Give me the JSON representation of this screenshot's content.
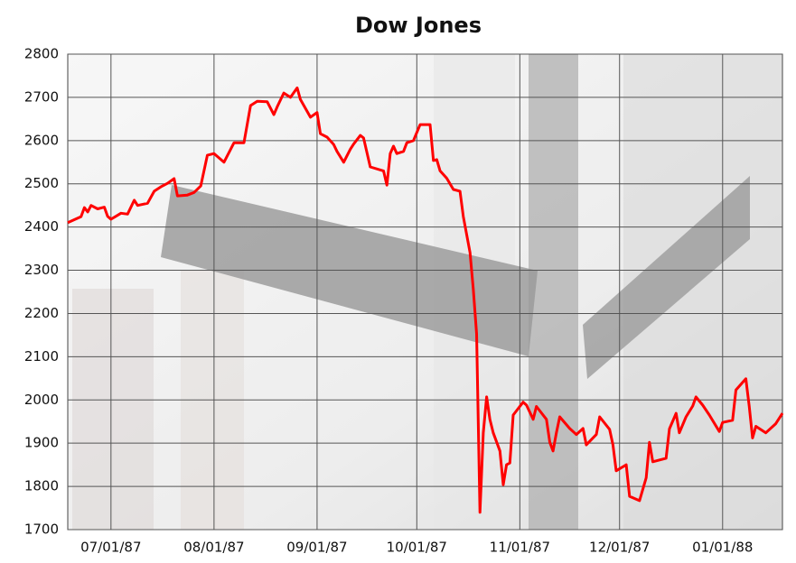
{
  "chart_data": {
    "type": "line",
    "title": "Dow Jones",
    "xlim": [
      "1987-06-18",
      "1988-01-19"
    ],
    "xticks": [
      {
        "value": "1987-07-01",
        "label": "07/01/87"
      },
      {
        "value": "1987-08-01",
        "label": "08/01/87"
      },
      {
        "value": "1987-09-01",
        "label": "09/01/87"
      },
      {
        "value": "1987-10-01",
        "label": "10/01/87"
      },
      {
        "value": "1987-11-01",
        "label": "11/01/87"
      },
      {
        "value": "1987-12-01",
        "label": "12/01/87"
      },
      {
        "value": "1988-01-01",
        "label": "01/01/88"
      }
    ],
    "ylim": [
      1700,
      2800
    ],
    "yticks": [
      1700,
      1800,
      1900,
      2000,
      2100,
      2200,
      2300,
      2400,
      2500,
      2600,
      2700,
      2800
    ],
    "grid": true,
    "x": [
      "1987-06-18",
      "1987-06-22",
      "1987-06-23",
      "1987-06-24",
      "1987-06-25",
      "1987-06-27",
      "1987-06-29",
      "1987-06-30",
      "1987-07-01",
      "1987-07-04",
      "1987-07-06",
      "1987-07-08",
      "1987-07-09",
      "1987-07-12",
      "1987-07-14",
      "1987-07-16",
      "1987-07-18",
      "1987-07-20",
      "1987-07-21",
      "1987-07-24",
      "1987-07-26",
      "1987-07-28",
      "1987-07-30",
      "1987-08-01",
      "1987-08-04",
      "1987-08-07",
      "1987-08-10",
      "1987-08-12",
      "1987-08-14",
      "1987-08-17",
      "1987-08-19",
      "1987-08-20",
      "1987-08-22",
      "1987-08-24",
      "1987-08-26",
      "1987-08-27",
      "1987-08-30",
      "1987-09-01",
      "1987-09-02",
      "1987-09-04",
      "1987-09-06",
      "1987-09-07",
      "1987-09-09",
      "1987-09-11",
      "1987-09-12",
      "1987-09-14",
      "1987-09-15",
      "1987-09-17",
      "1987-09-21",
      "1987-09-22",
      "1987-09-23",
      "1987-09-24",
      "1987-09-25",
      "1987-09-27",
      "1987-09-28",
      "1987-09-30",
      "1987-10-02",
      "1987-10-05",
      "1987-10-06",
      "1987-10-07",
      "1987-10-08",
      "1987-10-10",
      "1987-10-12",
      "1987-10-14",
      "1987-10-15",
      "1987-10-17",
      "1987-10-18",
      "1987-10-19",
      "1987-10-20",
      "1987-10-21",
      "1987-10-22",
      "1987-10-23",
      "1987-10-24",
      "1987-10-26",
      "1987-10-27",
      "1987-10-28",
      "1987-10-29",
      "1987-10-30",
      "1987-11-02",
      "1987-11-03",
      "1987-11-05",
      "1987-11-06",
      "1987-11-09",
      "1987-11-10",
      "1987-11-11",
      "1987-11-12",
      "1987-11-13",
      "1987-11-16",
      "1987-11-18",
      "1987-11-20",
      "1987-11-21",
      "1987-11-24",
      "1987-11-25",
      "1987-11-28",
      "1987-11-29",
      "1987-11-30",
      "1987-12-03",
      "1987-12-04",
      "1987-12-07",
      "1987-12-09",
      "1987-12-10",
      "1987-12-11",
      "1987-12-15",
      "1987-12-16",
      "1987-12-18",
      "1987-12-19",
      "1987-12-21",
      "1987-12-23",
      "1987-12-24",
      "1987-12-26",
      "1987-12-28",
      "1987-12-31",
      "1988-01-01",
      "1988-01-04",
      "1988-01-05",
      "1988-01-08",
      "1988-01-09",
      "1988-01-10",
      "1988-01-11",
      "1988-01-14",
      "1988-01-17",
      "1988-01-19"
    ],
    "series": [
      {
        "name": "Dow Jones",
        "color": "#ff0000",
        "values": [
          2410,
          2424,
          2445,
          2435,
          2450,
          2442,
          2446,
          2425,
          2418,
          2432,
          2430,
          2462,
          2450,
          2455,
          2483,
          2493,
          2501,
          2512,
          2472,
          2474,
          2480,
          2495,
          2566,
          2570,
          2550,
          2595,
          2595,
          2681,
          2691,
          2690,
          2660,
          2678,
          2710,
          2700,
          2722,
          2695,
          2654,
          2665,
          2616,
          2608,
          2591,
          2575,
          2550,
          2580,
          2592,
          2612,
          2606,
          2539,
          2530,
          2497,
          2570,
          2587,
          2570,
          2575,
          2595,
          2600,
          2637,
          2637,
          2554,
          2556,
          2530,
          2513,
          2487,
          2483,
          2424,
          2341,
          2257,
          2153,
          1740,
          1924,
          2007,
          1955,
          1924,
          1882,
          1804,
          1850,
          1854,
          1965,
          1995,
          1988,
          1955,
          1985,
          1955,
          1902,
          1882,
          1924,
          1961,
          1934,
          1920,
          1934,
          1896,
          1920,
          1961,
          1932,
          1896,
          1836,
          1850,
          1777,
          1767,
          1820,
          1902,
          1857,
          1865,
          1933,
          1969,
          1924,
          1961,
          1986,
          2007,
          1988,
          1965,
          1927,
          1948,
          1953,
          2023,
          2049,
          1986,
          1912,
          1939,
          1924,
          1945,
          1969
        ]
      }
    ]
  }
}
